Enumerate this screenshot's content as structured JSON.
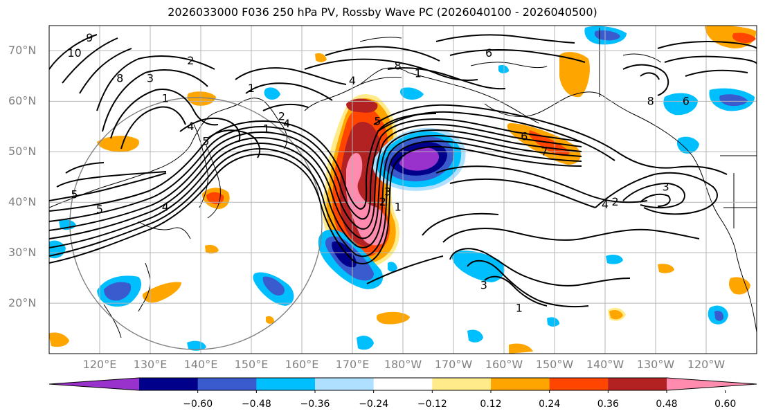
{
  "title": "2026033000 F036 250 hPa PV, Rossby Wave PC (2026040100 - 2026040500)",
  "lat_labels": [
    {
      "text": "70°N",
      "lat": 70
    },
    {
      "text": "60°N",
      "lat": 60
    },
    {
      "text": "50°N",
      "lat": 50
    },
    {
      "text": "40°N",
      "lat": 40
    },
    {
      "text": "30°N",
      "lat": 30
    },
    {
      "text": "20°N",
      "lat": 20
    }
  ],
  "lon_labels": [
    {
      "text": "120°E",
      "lon": 120
    },
    {
      "text": "130°E",
      "lon": 130
    },
    {
      "text": "140°E",
      "lon": 140
    },
    {
      "text": "150°E",
      "lon": 150
    },
    {
      "text": "160°E",
      "lon": 160
    },
    {
      "text": "170°E",
      "lon": 170
    },
    {
      "text": "180°W",
      "lon": 180
    },
    {
      "text": "170°W",
      "lon": 190
    },
    {
      "text": "160°W",
      "lon": 200
    },
    {
      "text": "150°W",
      "lon": 210
    },
    {
      "text": "140°W",
      "lon": 220
    },
    {
      "text": "130°W",
      "lon": 230
    },
    {
      "text": "120°W",
      "lon": 240
    }
  ],
  "map_extent": {
    "lon_min": 110,
    "lon_max": 250,
    "lat_min": 10,
    "lat_max": 75
  },
  "colorbar": {
    "colors": [
      "#9932cc",
      "#00008b",
      "#3a5bcd",
      "#00bfff",
      "#b0e0ff",
      "#ffffff",
      "#ffeb8a",
      "#ffa500",
      "#ff4500",
      "#b22222",
      "#ff8caf"
    ],
    "ticks": [
      "−0.60",
      "−0.48",
      "−0.36",
      "−0.24",
      "−0.12",
      "0.12",
      "0.24",
      "0.36",
      "0.48",
      "0.60"
    ]
  },
  "contour_labels": [
    {
      "text": "9",
      "lon": 118,
      "lat": 72.5
    },
    {
      "text": "10",
      "lon": 115,
      "lat": 69.5
    },
    {
      "text": "8",
      "lon": 124,
      "lat": 64.5
    },
    {
      "text": "3",
      "lon": 130,
      "lat": 64.5
    },
    {
      "text": "2",
      "lon": 138,
      "lat": 68
    },
    {
      "text": "1",
      "lon": 133,
      "lat": 60.5
    },
    {
      "text": "1",
      "lon": 150,
      "lat": 62.5
    },
    {
      "text": "4",
      "lon": 138,
      "lat": 55
    },
    {
      "text": "5",
      "lon": 141,
      "lat": 52
    },
    {
      "text": "1",
      "lon": 153,
      "lat": 54.5
    },
    {
      "text": "2",
      "lon": 156,
      "lat": 57
    },
    {
      "text": "4",
      "lon": 157,
      "lat": 55.5
    },
    {
      "text": "5",
      "lon": 115,
      "lat": 41.5
    },
    {
      "text": "5",
      "lon": 120,
      "lat": 38.5
    },
    {
      "text": "4",
      "lon": 133,
      "lat": 39
    },
    {
      "text": "4",
      "lon": 170,
      "lat": 64
    },
    {
      "text": "5",
      "lon": 175,
      "lat": 56
    },
    {
      "text": "3",
      "lon": 177,
      "lat": 42
    },
    {
      "text": "2",
      "lon": 176,
      "lat": 40
    },
    {
      "text": "1",
      "lon": 179,
      "lat": 39
    },
    {
      "text": "8",
      "lon": 179,
      "lat": 67
    },
    {
      "text": "1",
      "lon": 183,
      "lat": 65.5
    },
    {
      "text": "6",
      "lon": 197,
      "lat": 69.5
    },
    {
      "text": "6",
      "lon": 204,
      "lat": 53
    },
    {
      "text": "7",
      "lon": 208,
      "lat": 50
    },
    {
      "text": "8",
      "lon": 229,
      "lat": 60
    },
    {
      "text": "6",
      "lon": 236,
      "lat": 60
    },
    {
      "text": "4",
      "lon": 220,
      "lat": 39.5
    },
    {
      "text": "3",
      "lon": 232,
      "lat": 43
    },
    {
      "text": "2",
      "lon": 222,
      "lat": 40
    },
    {
      "text": "3",
      "lon": 196,
      "lat": 23.5
    },
    {
      "text": "1",
      "lon": 203,
      "lat": 19
    }
  ]
}
